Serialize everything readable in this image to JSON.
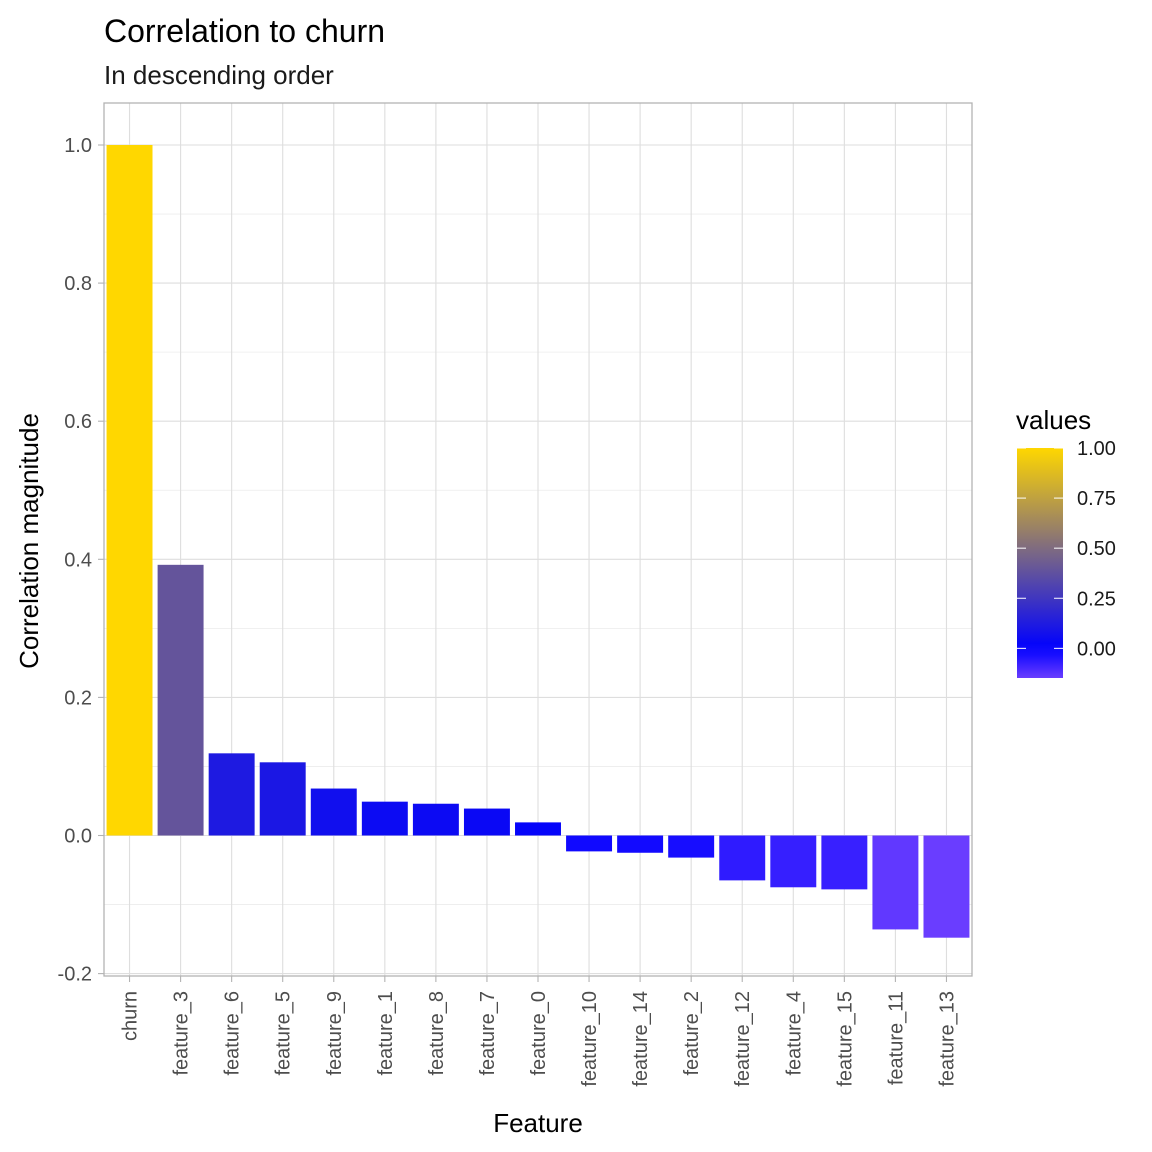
{
  "chart_data": {
    "type": "bar",
    "title": "Correlation to churn",
    "subtitle": "In descending order",
    "xlabel": "Feature",
    "ylabel": "Correlation magnitude",
    "categories": [
      "churn",
      "feature_3",
      "feature_6",
      "feature_5",
      "feature_9",
      "feature_1",
      "feature_8",
      "feature_7",
      "feature_0",
      "feature_10",
      "feature_14",
      "feature_2",
      "feature_12",
      "feature_4",
      "feature_15",
      "feature_11",
      "feature_13"
    ],
    "values": [
      1.0,
      0.392,
      0.119,
      0.106,
      0.068,
      0.049,
      0.046,
      0.039,
      0.019,
      -0.023,
      -0.025,
      -0.032,
      -0.065,
      -0.075,
      -0.078,
      -0.136,
      -0.148
    ],
    "ylim": [
      -0.2,
      1.0
    ],
    "yticks": [
      -0.2,
      0.0,
      0.2,
      0.4,
      0.6,
      0.8,
      1.0
    ],
    "ytick_labels": [
      "-0.2",
      "0.0",
      "0.2",
      "0.4",
      "0.6",
      "0.8",
      "1.0"
    ],
    "grid": true,
    "legend": {
      "title": "values",
      "position": "right",
      "type": "color-gradient",
      "range": [
        -0.148,
        1.0
      ],
      "breaks": [
        0.0,
        0.25,
        0.5,
        0.75,
        1.0
      ],
      "break_labels": [
        "0.00",
        "0.25",
        "0.50",
        "0.75",
        "1.00"
      ],
      "color_low": "#6a3dff",
      "color_mid": "#0000ff",
      "color_high": "#ffd700",
      "midpoint": 0.0
    }
  }
}
